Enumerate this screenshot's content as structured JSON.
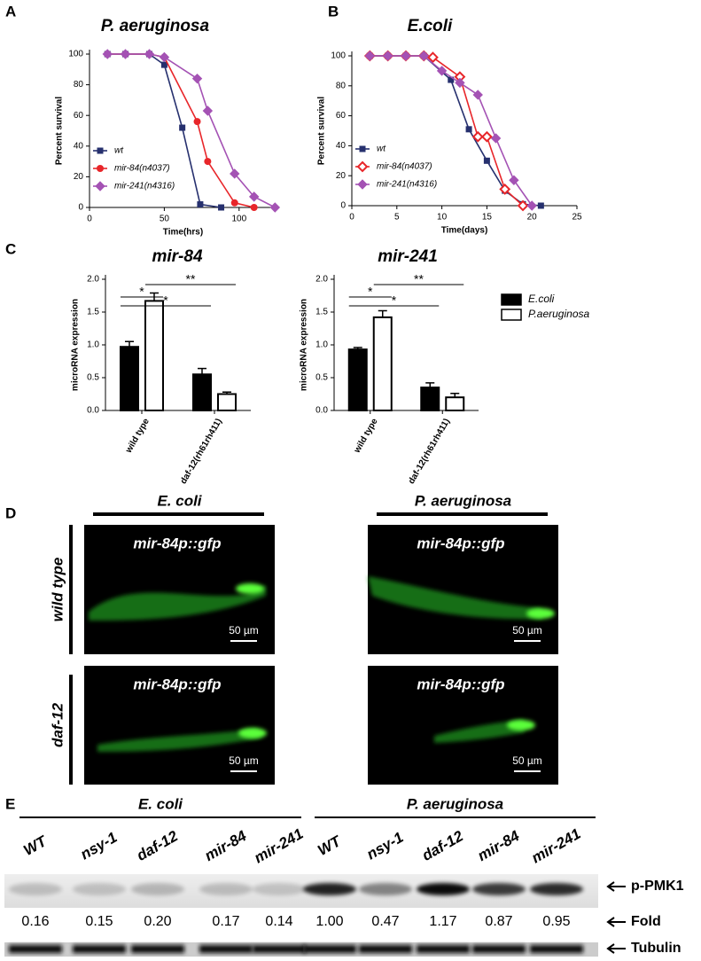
{
  "panel_labels": [
    "A",
    "B",
    "C",
    "D",
    "E"
  ],
  "chart_data": [
    {
      "type": "line",
      "title": "P. aeruginosa",
      "x_label": "Time(hrs)",
      "y_label": "Percent survival",
      "xlim": [
        0,
        125
      ],
      "xticks": [
        0,
        50,
        100
      ],
      "ylim": [
        0,
        100
      ],
      "yticks": [
        0,
        20,
        40,
        60,
        80,
        100
      ],
      "legend": "lower left",
      "series": [
        {
          "name": "wt",
          "color": "#26306e",
          "marker": "square",
          "x": [
            12,
            24,
            40,
            50,
            62,
            74,
            88
          ],
          "values": [
            100,
            100,
            100,
            93,
            52,
            2,
            0
          ]
        },
        {
          "name": "mir-84(n4037)",
          "color": "#e8262a",
          "marker": "circle",
          "x": [
            12,
            24,
            40,
            50,
            72,
            79,
            97,
            110
          ],
          "values": [
            100,
            100,
            100,
            98,
            56,
            30,
            3,
            0
          ]
        },
        {
          "name": "mir-241(n4316)",
          "color": "#a452b4",
          "marker": "diamond",
          "x": [
            12,
            24,
            40,
            50,
            72,
            79,
            97,
            110,
            124
          ],
          "values": [
            100,
            100,
            100,
            98,
            84,
            63,
            22,
            7,
            0
          ]
        }
      ]
    },
    {
      "type": "line",
      "title": "E.coli",
      "x_label": "Time(days)",
      "y_label": "Percent survival",
      "xlim": [
        0,
        25
      ],
      "xticks": [
        0,
        5,
        10,
        15,
        20,
        25
      ],
      "ylim": [
        0,
        100
      ],
      "yticks": [
        0,
        20,
        40,
        60,
        80,
        100
      ],
      "legend": "lower left",
      "series": [
        {
          "name": "wt",
          "color": "#26306e",
          "marker": "square",
          "x": [
            2,
            4,
            6,
            8,
            11,
            13,
            15,
            17,
            19,
            21
          ],
          "values": [
            100,
            100,
            100,
            100,
            84,
            51,
            30,
            10,
            1,
            0
          ]
        },
        {
          "name": "mir-84(n4037)",
          "color": "#e8262a",
          "marker": "diamond-open",
          "x": [
            2,
            4,
            6,
            8,
            9,
            12,
            14,
            15,
            17,
            19
          ],
          "values": [
            100,
            100,
            100,
            100,
            99,
            86,
            46,
            46,
            11,
            0
          ]
        },
        {
          "name": "mir-241(n4316)",
          "color": "#a452b4",
          "marker": "diamond",
          "x": [
            2,
            4,
            6,
            8,
            10,
            12,
            14,
            16,
            18,
            20
          ],
          "values": [
            100,
            100,
            100,
            100,
            90,
            82,
            74,
            45,
            17,
            0
          ]
        }
      ]
    },
    {
      "type": "bar",
      "title": "mir-84",
      "y_label": "microRNA expression",
      "ylim": [
        0,
        2
      ],
      "yticks": [
        {
          "value": 0,
          "label": "0.0"
        },
        0.5,
        {
          "value": 1,
          "label": "1.0"
        },
        1.5,
        {
          "value": 2,
          "label": "2.0"
        }
      ],
      "categories": [
        "wild type",
        "daf-12(rh61rh411)"
      ],
      "annotations": [
        "*",
        "*",
        "**"
      ],
      "legend": "none",
      "series": [
        {
          "name": "E.coli",
          "color": "#000000",
          "values": [
            0.97,
            0.55
          ],
          "errors": [
            0.08,
            0.09
          ]
        },
        {
          "name": "P.aeruginosa",
          "color": "#ffffff",
          "values": [
            1.67,
            0.25
          ],
          "errors": [
            0.12,
            0.03
          ]
        }
      ]
    },
    {
      "type": "bar",
      "title": "mir-241",
      "y_label": "microRNA expression",
      "ylim": [
        0,
        2
      ],
      "yticks": [
        {
          "value": 0,
          "label": "0.0"
        },
        0.5,
        {
          "value": 1,
          "label": "1.0"
        },
        1.5,
        {
          "value": 2,
          "label": "2.0"
        }
      ],
      "categories": [
        "wild type",
        "daf-12(rh61rh411)"
      ],
      "annotations": [
        "*",
        "*",
        "**"
      ],
      "legend": "right",
      "series": [
        {
          "name": "E.coli",
          "color": "#000000",
          "values": [
            0.93,
            0.35
          ],
          "errors": [
            0.03,
            0.07
          ]
        },
        {
          "name": "P.aeruginosa",
          "color": "#ffffff",
          "values": [
            1.42,
            0.2
          ],
          "errors": [
            0.1,
            0.06
          ]
        }
      ]
    }
  ],
  "panel_d": {
    "columns": [
      "E. coli",
      "P. aeruginosa"
    ],
    "rows": [
      "wild type",
      "daf-12"
    ],
    "images": [
      {
        "label": "mir-84p::gfp",
        "scale": "50 µm"
      },
      {
        "label": "mir-84p::gfp",
        "scale": "50 µm"
      },
      {
        "label": "mir-84p::gfp",
        "scale": "50 µm"
      },
      {
        "label": "mir-84p::gfp",
        "scale": "50 µm"
      }
    ]
  },
  "panel_e": {
    "groups": [
      "E. coli",
      "P. aeruginosa"
    ],
    "lanes": [
      "WT",
      "nsy-1",
      "daf-12",
      "mir-84",
      "mir-241",
      "WT",
      "nsy-1",
      "daf-12",
      "mir-84",
      "mir-241"
    ],
    "fold": [
      "0.16",
      "0.15",
      "0.20",
      "0.17",
      "0.14",
      "1.00",
      "0.47",
      "1.17",
      "0.87",
      "0.95"
    ],
    "row_labels": [
      "p-PMK1",
      "Fold",
      "Tubulin"
    ]
  }
}
